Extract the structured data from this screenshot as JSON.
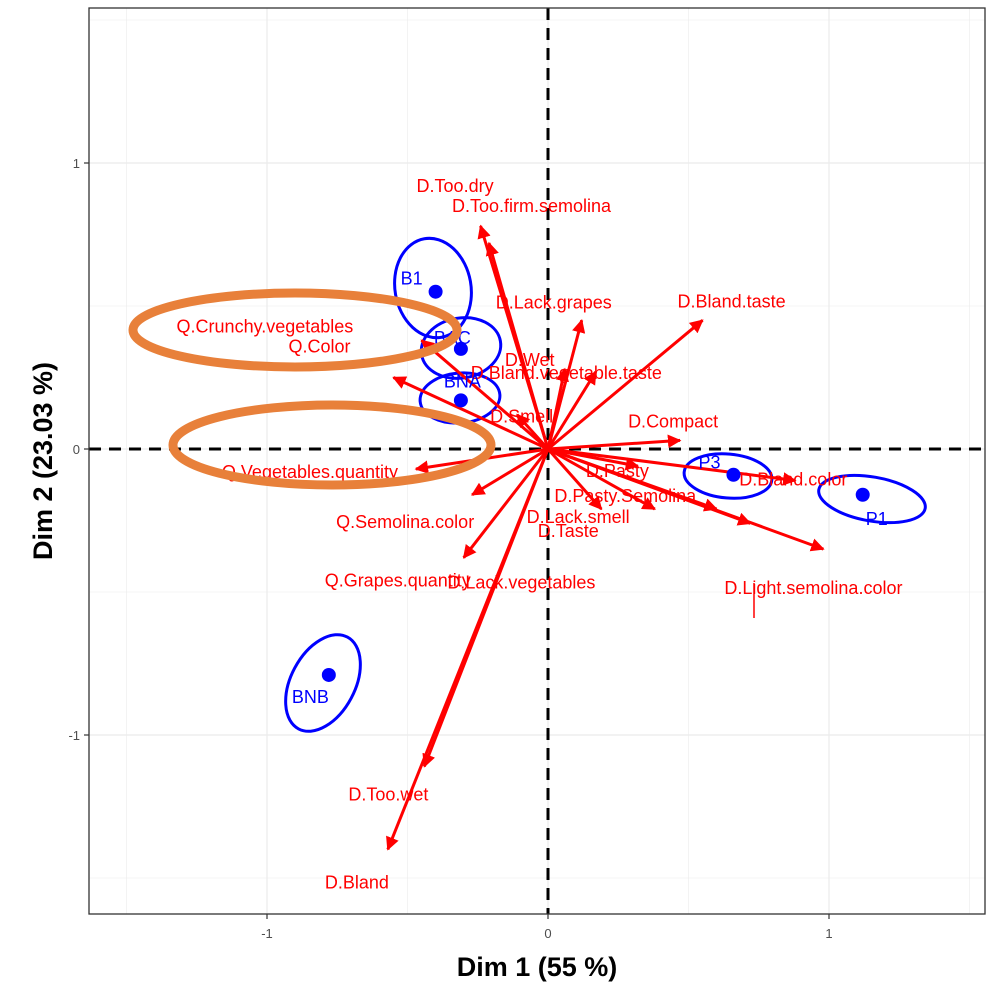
{
  "chart_data": {
    "type": "scatter",
    "title": "",
    "xlabel": "Dim 1 (55 %)",
    "ylabel": "Dim 2 (23.03 %)",
    "xlim": [
      -1.62,
      1.54
    ],
    "ylim": [
      -1.6,
      1.53
    ],
    "x_ticks": [
      -1,
      0,
      1
    ],
    "x_tick_labels": [
      "-1",
      "0",
      "1"
    ],
    "y_ticks": [
      -1,
      0,
      1
    ],
    "y_tick_labels": [
      "-1",
      "0",
      "1"
    ],
    "grid": true,
    "reference_lines": "dashed lines at x = 0 and y = 0",
    "colors": {
      "vectors": "#ff0000",
      "products": "#0000ff",
      "highlight": "#e8803a",
      "axis_lines": "#000000",
      "grid": "#ebebeb",
      "panel_border": "#333333"
    },
    "vectors": [
      {
        "label": "D.Too.dry",
        "x": -0.24,
        "y": 0.78
      },
      {
        "label": "D.Too.firm.semolina",
        "x": -0.21,
        "y": 0.72
      },
      {
        "label": "D.Lack.grapes",
        "x": 0.12,
        "y": 0.45
      },
      {
        "label": "D.Bland.taste",
        "x": 0.55,
        "y": 0.45
      },
      {
        "label": "Q.Crunchy.vegetables",
        "x": -0.45,
        "y": 0.38
      },
      {
        "label": "D.Wet",
        "x": 0.06,
        "y": 0.28
      },
      {
        "label": "Q.Color",
        "x": -0.55,
        "y": 0.25
      },
      {
        "label": "D.Bland.vegetable.taste",
        "x": 0.17,
        "y": 0.27
      },
      {
        "label": "D.Compact",
        "x": 0.47,
        "y": 0.03
      },
      {
        "label": "D.Smell",
        "x": -0.11,
        "y": 0.12
      },
      {
        "label": "Q.Vegetables.quantity",
        "x": -0.47,
        "y": -0.07
      },
      {
        "label": "D.Pasty",
        "x": 0.32,
        "y": -0.06
      },
      {
        "label": "D.Bland.color",
        "x": 0.88,
        "y": -0.11
      },
      {
        "label": "D.Pasty.Semolina",
        "x": 0.19,
        "y": -0.21
      },
      {
        "label": "Q.Semolina.color",
        "x": -0.27,
        "y": -0.16
      },
      {
        "label": "D.Taste",
        "x": 0.38,
        "y": -0.21
      },
      {
        "label": "D.Lack.smell",
        "x": 0.6,
        "y": -0.21
      },
      {
        "label": "D.Light.semolina.color",
        "x": 0.98,
        "y": -0.35
      },
      {
        "label": "Q.Grapes.quantity",
        "x": -0.3,
        "y": -0.38
      },
      {
        "label": "D.Lack.vegetables",
        "x": 0.72,
        "y": -0.26
      },
      {
        "label": "D.Too.wet",
        "x": -0.44,
        "y": -1.11
      },
      {
        "label": "D.Bland",
        "x": -0.57,
        "y": -1.4
      }
    ],
    "products": [
      {
        "label": "B1",
        "x": -0.4,
        "y": 0.55
      },
      {
        "label": "BAC",
        "x": -0.31,
        "y": 0.35
      },
      {
        "label": "BNA",
        "x": -0.31,
        "y": 0.17
      },
      {
        "label": "BNB",
        "x": -0.78,
        "y": -0.79
      },
      {
        "label": "P3",
        "x": 0.66,
        "y": -0.09
      },
      {
        "label": "P1",
        "x": 1.12,
        "y": -0.16
      }
    ]
  }
}
